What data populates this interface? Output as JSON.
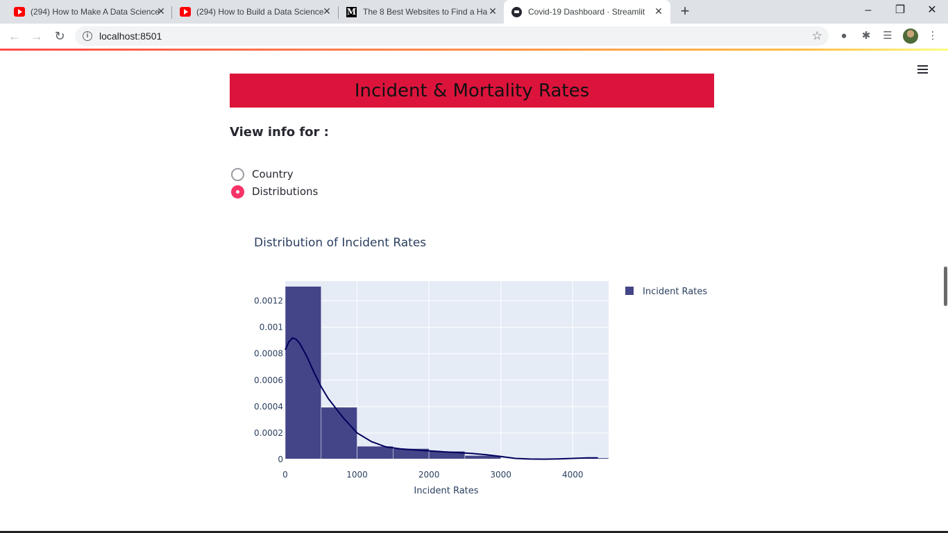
{
  "browser": {
    "tabs": [
      {
        "title": "(294) How to Make A Data Science",
        "favicon": "youtube-icon"
      },
      {
        "title": "(294) How to Build a Data Science",
        "favicon": "youtube-icon"
      },
      {
        "title": "The 8 Best Websites to Find a Ha",
        "favicon": "medium-icon"
      },
      {
        "title": "Covid-19 Dashboard · Streamlit",
        "favicon": "streamlit-icon",
        "active": true
      }
    ],
    "medium_letter": "M",
    "close_glyph": "✕",
    "new_tab_glyph": "+",
    "url": "localhost:8501"
  },
  "page": {
    "banner_title": "Incident & Mortality Rates",
    "banner_color": "#dc143c",
    "view_info_label": "View info for :",
    "radio_options": [
      {
        "label": "Country",
        "checked": false
      },
      {
        "label": "Distributions",
        "checked": true
      }
    ],
    "accent_color": "#f63366"
  },
  "chart_data": {
    "type": "bar",
    "title": "Distribution of Incident Rates",
    "xlabel": "Incident Rates",
    "ylabel": "",
    "legend": {
      "position": "top-right",
      "entries": [
        "Incident Rates"
      ]
    },
    "xlim": [
      0,
      4500
    ],
    "ylim": [
      0,
      0.00135
    ],
    "x_ticks": [
      0,
      1000,
      2000,
      3000,
      4000
    ],
    "x_tick_labels": [
      "0",
      "1000",
      "2000",
      "3000",
      "4000"
    ],
    "y_ticks": [
      0,
      0.0002,
      0.0004,
      0.0006,
      0.0008,
      0.001,
      0.0012
    ],
    "y_tick_labels": [
      "0",
      "0.0002",
      "0.0004",
      "0.0006",
      "0.0008",
      "0.001",
      "0.0012"
    ],
    "grid": true,
    "bar_color": "#444488",
    "curve_color": "#00005c",
    "plot_bg": "#e5ecf6",
    "bins": [
      {
        "start": 0,
        "end": 500,
        "density": 0.00131
      },
      {
        "start": 500,
        "end": 1000,
        "density": 0.000395
      },
      {
        "start": 1000,
        "end": 1500,
        "density": 0.0001
      },
      {
        "start": 1500,
        "end": 2000,
        "density": 8.2e-05
      },
      {
        "start": 2000,
        "end": 2500,
        "density": 6.2e-05
      },
      {
        "start": 2500,
        "end": 3000,
        "density": 3e-05
      },
      {
        "start": 3000,
        "end": 3500,
        "density": 0
      },
      {
        "start": 3500,
        "end": 4000,
        "density": 0
      },
      {
        "start": 4000,
        "end": 4500,
        "density": 1.2e-05
      }
    ],
    "kde": {
      "name": "Incident Rates",
      "x": [
        0,
        50,
        100,
        150,
        200,
        300,
        400,
        500,
        600,
        700,
        800,
        900,
        1000,
        1200,
        1400,
        1600,
        1800,
        2000,
        2200,
        2400,
        2600,
        2800,
        3000,
        3200,
        3400,
        3600,
        3800,
        4000,
        4200,
        4350
      ],
      "y": [
        0.00083,
        0.00089,
        0.00092,
        0.00091,
        0.00088,
        0.00078,
        0.00066,
        0.00055,
        0.00046,
        0.00039,
        0.00032,
        0.00026,
        0.0002,
        0.000135,
        9.5e-05,
        8e-05,
        7.2e-05,
        6.5e-05,
        5.8e-05,
        5.2e-05,
        4.5e-05,
        3.5e-05,
        2.2e-05,
        8e-06,
        3e-06,
        2e-06,
        4e-06,
        8e-06,
        1.2e-05,
        1.2e-05
      ]
    }
  }
}
